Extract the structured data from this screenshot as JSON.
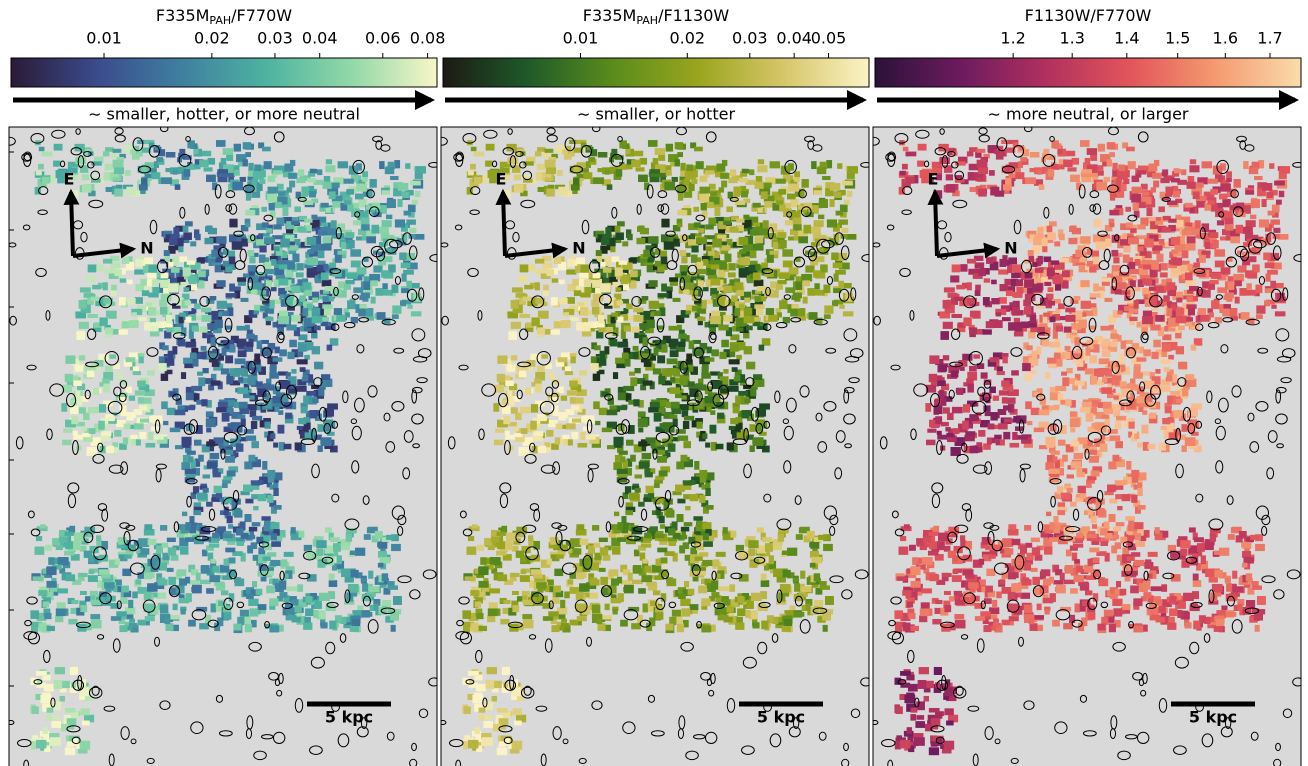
{
  "chart_data": [
    {
      "type": "colorbar",
      "title": {
        "text": "F335M",
        "subscript": "PAH",
        "suffix": "/F770W"
      },
      "log": true,
      "xlim": [
        0.0055,
        0.085
      ],
      "xticks": [
        0.01,
        0.02,
        0.03,
        0.04,
        0.06,
        0.08
      ],
      "colormap": [
        "#2a1b36",
        "#3b4a8c",
        "#3f7fa0",
        "#4eb3a0",
        "#92d8a8",
        "#f8f6c8"
      ],
      "arrow_label": "∼ smaller, hotter, or more neutral",
      "compass": [
        "E",
        "N"
      ],
      "scale_bar": "5 kpc"
    },
    {
      "type": "colorbar",
      "title": {
        "text": "F335M",
        "subscript": "PAH",
        "suffix": "/F1130W"
      },
      "log": true,
      "xlim": [
        0.0041,
        0.065
      ],
      "xticks": [
        0.01,
        0.02,
        0.03,
        0.04,
        0.05
      ],
      "colormap": [
        "#1c1a14",
        "#1f5a2a",
        "#5a8c1c",
        "#9aa51e",
        "#d6c66a",
        "#fbf3c6"
      ],
      "arrow_label": "∼ smaller, or hotter",
      "compass": [
        "E",
        "N"
      ],
      "scale_bar": "5 kpc"
    },
    {
      "type": "colorbar",
      "title": {
        "text": "F1130W/F770W"
      },
      "log": true,
      "xlim": [
        0.995,
        1.773
      ],
      "xticks": [
        1.2,
        1.3,
        1.4,
        1.5,
        1.6,
        1.7
      ],
      "colormap": [
        "#2b1238",
        "#6b1b5e",
        "#b0305f",
        "#e2555a",
        "#f49a70",
        "#fbdcab"
      ],
      "arrow_label": "∼ more neutral, or larger",
      "compass": [
        "E",
        "N"
      ],
      "scale_bar": "5 kpc"
    }
  ]
}
